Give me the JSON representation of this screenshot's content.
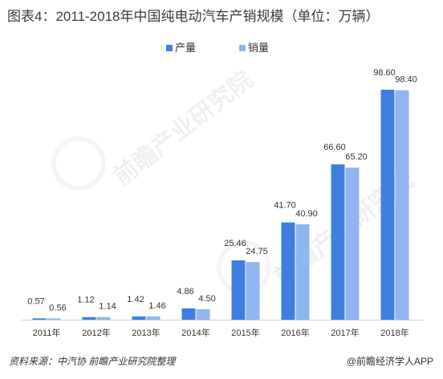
{
  "title": "图表4：2011-2018年中国纯电动汽车产销规模（单位：万辆）",
  "footer": {
    "source": "资料来源：中汽协  前瞻产业研究院整理",
    "brand": "@前瞻经济学人APP"
  },
  "watermark": {
    "text": "前瞻产业研究院"
  },
  "colors": {
    "production": "#3f7ee0",
    "sales": "#8fb6ee"
  },
  "chart_data": {
    "type": "bar",
    "title": "图表4：2011-2018年中国纯电动汽车产销规模（单位：万辆）",
    "categories": [
      "2011年",
      "2012年",
      "2013年",
      "2014年",
      "2015年",
      "2016年",
      "2017年",
      "2018年"
    ],
    "series": [
      {
        "name": "产量",
        "values": [
          0.57,
          1.12,
          1.42,
          4.86,
          25.46,
          41.7,
          66.6,
          98.6
        ],
        "labels": [
          "0.57",
          "1.12",
          "1.42",
          "4.86",
          "25.46",
          "41.70",
          "66.60",
          "98.60"
        ]
      },
      {
        "name": "销量",
        "values": [
          0.56,
          1.14,
          1.46,
          4.5,
          24.75,
          40.9,
          65.2,
          98.4
        ],
        "labels": [
          "0.56",
          "1.14",
          "1.46",
          "4.50",
          "24.75",
          "40.90",
          "65.20",
          "98.40"
        ]
      }
    ],
    "ylim": [
      0,
      100
    ],
    "grid": false,
    "legend": "top-center"
  }
}
